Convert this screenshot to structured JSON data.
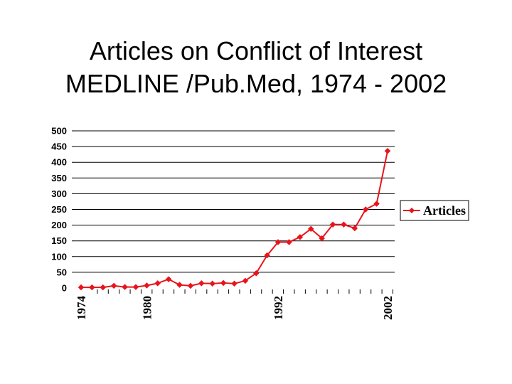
{
  "slide": {
    "title_line1": "Articles on Conflict of Interest",
    "title_line2": "MEDLINE /Pub.Med, 1974 - 2002"
  },
  "colors": {
    "series": "#e8141b",
    "gridline": "#000000",
    "background": "#ffffff",
    "text": "#000000"
  },
  "chart_data": {
    "type": "line",
    "title": "",
    "xlabel": "",
    "ylabel": "",
    "ylim": [
      0,
      500
    ],
    "y_ticks": [
      0,
      50,
      100,
      150,
      200,
      250,
      300,
      350,
      400,
      450,
      500
    ],
    "x": [
      1974,
      1975,
      1976,
      1977,
      1978,
      1979,
      1980,
      1981,
      1982,
      1983,
      1984,
      1985,
      1986,
      1987,
      1988,
      1989,
      1990,
      1991,
      1992,
      1993,
      1994,
      1995,
      1996,
      1997,
      1998,
      1999,
      2000,
      2001,
      2002
    ],
    "x_tick_labels": [
      "1974",
      "1980",
      "1992",
      "2002"
    ],
    "grid": true,
    "legend_position": "right",
    "series": [
      {
        "name": "Articles",
        "marker": "diamond",
        "values": [
          2,
          2,
          2,
          7,
          3,
          3,
          8,
          15,
          28,
          10,
          7,
          15,
          14,
          16,
          14,
          23,
          47,
          104,
          146,
          146,
          162,
          188,
          158,
          202,
          202,
          190,
          250,
          268,
          436
        ]
      }
    ]
  }
}
